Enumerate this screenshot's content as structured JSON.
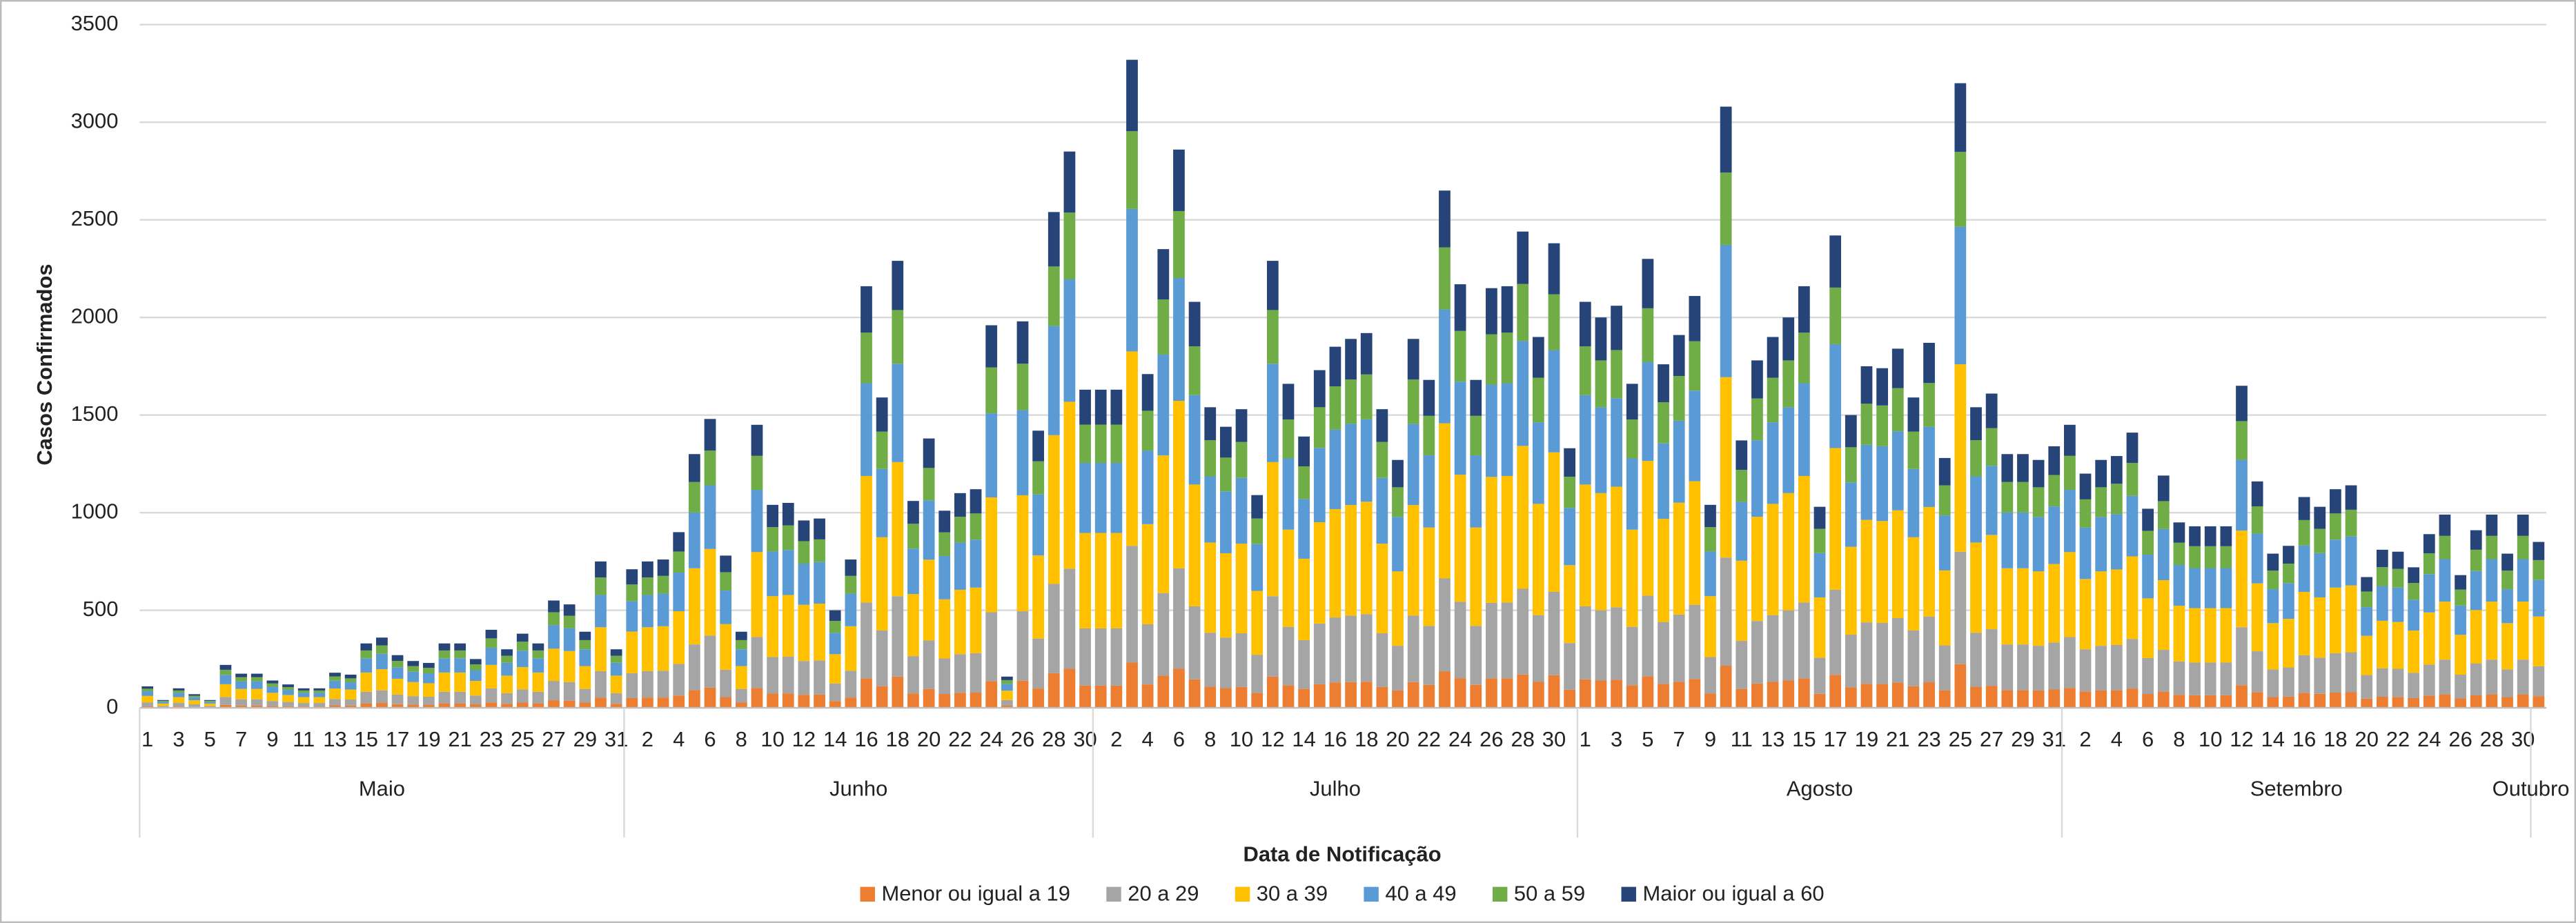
{
  "chart_data": {
    "type": "stacked_bar",
    "y_label": "Casos Confirmados",
    "x_label": "Data de Notificação",
    "ylim": [
      0,
      3500
    ],
    "yticks": [
      0,
      500,
      1000,
      1500,
      2000,
      2500,
      3000,
      3500
    ],
    "grid": true,
    "legend": "bottom",
    "categories": [
      "1",
      null,
      "3",
      null,
      "5",
      null,
      "7",
      null,
      "9",
      null,
      "11",
      null,
      "13",
      null,
      "15",
      null,
      "17",
      null,
      "19",
      null,
      "21",
      null,
      "23",
      null,
      "25",
      null,
      "27",
      null,
      "29",
      null,
      "31",
      null,
      "2",
      null,
      "4",
      null,
      "6",
      null,
      "8",
      null,
      "10",
      null,
      "12",
      null,
      "14",
      null,
      "16",
      null,
      "18",
      null,
      "20",
      null,
      "22",
      null,
      "24",
      null,
      "26",
      null,
      "28",
      null,
      "30",
      null,
      "2",
      null,
      "4",
      null,
      "6",
      null,
      "8",
      null,
      "10",
      null,
      "12",
      null,
      "14",
      null,
      "16",
      null,
      "18",
      null,
      "20",
      null,
      "22",
      null,
      "24",
      null,
      "26",
      null,
      "28",
      null,
      "30",
      null,
      "1",
      null,
      "3",
      null,
      "5",
      null,
      "7",
      null,
      "9",
      null,
      "11",
      null,
      "13",
      null,
      "15",
      null,
      "17",
      null,
      "19",
      null,
      "21",
      null,
      "23",
      null,
      "25",
      null,
      "27",
      null,
      "29",
      null,
      "31",
      null,
      "2",
      null,
      "4",
      null,
      "6",
      null,
      "8",
      null,
      "10",
      null,
      "12",
      null,
      "14",
      null,
      "16",
      null,
      "18",
      null,
      "20",
      null,
      "22",
      null,
      "24",
      null,
      "26",
      null,
      "28",
      null,
      "30",
      null
    ],
    "x_groups": [
      {
        "label": "Maio",
        "count": 31
      },
      {
        "label": "Junho",
        "count": 30
      },
      {
        "label": "Julho",
        "count": 31
      },
      {
        "label": "Agosto",
        "count": 31
      },
      {
        "label": "Setembro",
        "count": 30
      },
      {
        "label": "Outubro",
        "count": 1
      }
    ],
    "series": [
      {
        "name": "Menor ou igual a 19",
        "color": "#ED7D31",
        "values": [
          8,
          3,
          7,
          5,
          3,
          15,
          12,
          12,
          10,
          8,
          7,
          7,
          13,
          12,
          23,
          25,
          19,
          17,
          16,
          23,
          23,
          18,
          28,
          21,
          27,
          23,
          39,
          37,
          27,
          53,
          21,
          50,
          53,
          53,
          63,
          91,
          104,
          55,
          27,
          102,
          73,
          74,
          67,
          68,
          35,
          53,
          151,
          111,
          160,
          74,
          97,
          71,
          77,
          78,
          137,
          11,
          139,
          99,
          178,
          200,
          114,
          114,
          114,
          232,
          120,
          165,
          200,
          146,
          108,
          101,
          107,
          76,
          160,
          116,
          97,
          121,
          130,
          132,
          134,
          107,
          89,
          132,
          118,
          186,
          152,
          118,
          151,
          151,
          171,
          133,
          167,
          93,
          146,
          140,
          144,
          116,
          161,
          123,
          134,
          148,
          73,
          216,
          96,
          125,
          133,
          140,
          151,
          72,
          169,
          105,
          123,
          122,
          129,
          111,
          131,
          90,
          224,
          108,
          113,
          91,
          91,
          89,
          94,
          102,
          84,
          89,
          90,
          99,
          71,
          83,
          67,
          65,
          65,
          65,
          116,
          81,
          55,
          58,
          76,
          72,
          78,
          80,
          47,
          57,
          56,
          50,
          62,
          69,
          48,
          64,
          69,
          55,
          69,
          60
        ]
      },
      {
        "name": "20 a 29",
        "color": "#A5A5A5",
        "values": [
          20,
          7,
          18,
          13,
          7,
          40,
          32,
          32,
          25,
          22,
          18,
          18,
          32,
          31,
          59,
          65,
          49,
          43,
          41,
          59,
          59,
          45,
          72,
          54,
          68,
          59,
          99,
          95,
          70,
          135,
          54,
          128,
          135,
          137,
          162,
          234,
          266,
          140,
          70,
          261,
          187,
          189,
          173,
          175,
          90,
          137,
          389,
          286,
          412,
          191,
          248,
          182,
          198,
          202,
          353,
          29,
          356,
          256,
          457,
          513,
          293,
          293,
          293,
          598,
          308,
          423,
          515,
          374,
          277,
          259,
          275,
          196,
          412,
          299,
          250,
          311,
          333,
          340,
          346,
          275,
          229,
          340,
          302,
          477,
          391,
          302,
          387,
          389,
          439,
          342,
          428,
          239,
          374,
          360,
          371,
          299,
          414,
          317,
          344,
          380,
          187,
          554,
          247,
          320,
          342,
          360,
          389,
          185,
          436,
          270,
          315,
          313,
          331,
          286,
          337,
          230,
          576,
          277,
          290,
          234,
          234,
          229,
          241,
          261,
          216,
          229,
          232,
          254,
          184,
          214,
          171,
          167,
          167,
          167,
          297,
          209,
          142,
          149,
          194,
          185,
          202,
          205,
          121,
          146,
          144,
          130,
          160,
          178,
          122,
          164,
          178,
          142,
          178,
          153
        ]
      },
      {
        "name": "30 a 39",
        "color": "#FFC000",
        "values": [
          33,
          12,
          30,
          21,
          12,
          66,
          53,
          53,
          42,
          36,
          30,
          30,
          54,
          51,
          99,
          108,
          81,
          72,
          69,
          99,
          99,
          75,
          120,
          90,
          114,
          99,
          165,
          159,
          117,
          225,
          90,
          213,
          225,
          228,
          270,
          390,
          444,
          234,
          117,
          435,
          312,
          315,
          288,
          291,
          150,
          228,
          648,
          477,
          687,
          318,
          414,
          303,
          330,
          336,
          588,
          48,
          594,
          426,
          762,
          855,
          489,
          489,
          489,
          996,
          513,
          705,
          858,
          624,
          462,
          432,
          459,
          327,
          687,
          498,
          417,
          519,
          555,
          567,
          576,
          459,
          381,
          567,
          504,
          795,
          651,
          504,
          645,
          648,
          732,
          570,
          714,
          399,
          624,
          600,
          618,
          498,
          690,
          528,
          573,
          633,
          312,
          924,
          411,
          534,
          570,
          600,
          648,
          309,
          726,
          450,
          525,
          522,
          552,
          477,
          561,
          384,
          960,
          462,
          483,
          390,
          390,
          381,
          402,
          435,
          360,
          381,
          387,
          423,
          306,
          357,
          285,
          279,
          279,
          279,
          495,
          348,
          237,
          249,
          324,
          309,
          336,
          342,
          201,
          243,
          240,
          216,
          267,
          297,
          204,
          273,
          297,
          237,
          297,
          255
        ]
      },
      {
        "name": "40 a 49",
        "color": "#5B9BD5",
        "values": [
          24,
          9,
          22,
          15,
          9,
          48,
          39,
          39,
          31,
          26,
          22,
          22,
          40,
          37,
          73,
          79,
          59,
          53,
          51,
          73,
          73,
          55,
          88,
          66,
          84,
          73,
          121,
          117,
          86,
          165,
          66,
          156,
          165,
          167,
          198,
          286,
          326,
          172,
          86,
          319,
          229,
          231,
          211,
          213,
          110,
          167,
          475,
          350,
          504,
          233,
          304,
          222,
          242,
          246,
          431,
          35,
          436,
          312,
          559,
          627,
          359,
          359,
          359,
          730,
          376,
          517,
          629,
          458,
          339,
          317,
          337,
          240,
          504,
          365,
          306,
          381,
          407,
          416,
          422,
          337,
          279,
          416,
          370,
          583,
          477,
          370,
          473,
          475,
          537,
          418,
          524,
          293,
          458,
          440,
          453,
          365,
          506,
          387,
          420,
          464,
          229,
          678,
          301,
          392,
          418,
          440,
          475,
          227,
          532,
          330,
          385,
          383,
          405,
          350,
          411,
          282,
          704,
          339,
          354,
          286,
          286,
          279,
          295,
          319,
          264,
          279,
          284,
          310,
          224,
          262,
          209,
          205,
          205,
          205,
          363,
          255,
          174,
          183,
          238,
          227,
          246,
          251,
          147,
          178,
          176,
          158,
          196,
          218,
          150,
          200,
          218,
          174,
          218,
          187
        ]
      },
      {
        "name": "50 a 59",
        "color": "#70AD47",
        "values": [
          13,
          5,
          12,
          8,
          5,
          26,
          21,
          21,
          17,
          14,
          12,
          12,
          22,
          20,
          40,
          43,
          32,
          29,
          28,
          40,
          40,
          30,
          48,
          36,
          46,
          40,
          66,
          64,
          47,
          90,
          36,
          85,
          90,
          91,
          108,
          156,
          178,
          94,
          47,
          174,
          125,
          126,
          115,
          116,
          60,
          91,
          259,
          191,
          275,
          127,
          166,
          121,
          132,
          134,
          235,
          19,
          238,
          170,
          305,
          342,
          196,
          196,
          196,
          398,
          205,
          282,
          343,
          250,
          185,
          173,
          184,
          131,
          275,
          199,
          167,
          208,
          222,
          227,
          230,
          184,
          152,
          227,
          202,
          318,
          260,
          202,
          258,
          259,
          293,
          228,
          286,
          160,
          250,
          240,
          247,
          199,
          276,
          211,
          229,
          253,
          125,
          370,
          164,
          214,
          228,
          240,
          259,
          124,
          290,
          180,
          210,
          209,
          221,
          191,
          224,
          154,
          384,
          185,
          193,
          156,
          156,
          152,
          161,
          174,
          144,
          152,
          155,
          169,
          122,
          143,
          114,
          112,
          112,
          112,
          198,
          139,
          95,
          100,
          130,
          124,
          134,
          137,
          80,
          97,
          96,
          86,
          107,
          119,
          82,
          109,
          119,
          95,
          119,
          102
        ]
      },
      {
        "name": "Maior ou igual a 60",
        "color": "#264478",
        "values": [
          12,
          4,
          11,
          8,
          4,
          25,
          18,
          18,
          15,
          14,
          11,
          11,
          19,
          19,
          36,
          40,
          30,
          26,
          25,
          36,
          36,
          27,
          44,
          33,
          41,
          36,
          60,
          58,
          43,
          82,
          33,
          78,
          82,
          84,
          99,
          143,
          162,
          85,
          43,
          159,
          114,
          115,
          106,
          107,
          55,
          84,
          238,
          175,
          252,
          117,
          151,
          111,
          121,
          124,
          216,
          18,
          217,
          157,
          279,
          313,
          179,
          179,
          179,
          366,
          188,
          258,
          315,
          228,
          169,
          158,
          168,
          120,
          252,
          183,
          153,
          190,
          203,
          208,
          212,
          168,
          140,
          208,
          184,
          291,
          239,
          184,
          236,
          238,
          268,
          209,
          261,
          146,
          228,
          220,
          227,
          183,
          253,
          194,
          210,
          232,
          114,
          338,
          151,
          195,
          209,
          220,
          238,
          113,
          267,
          165,
          192,
          191,
          202,
          175,
          206,
          140,
          352,
          169,
          177,
          143,
          143,
          140,
          147,
          159,
          132,
          140,
          142,
          155,
          113,
          131,
          104,
          102,
          102,
          102,
          181,
          128,
          87,
          91,
          118,
          113,
          124,
          125,
          74,
          89,
          88,
          80,
          98,
          109,
          74,
          100,
          109,
          87,
          109,
          93
        ]
      }
    ]
  }
}
